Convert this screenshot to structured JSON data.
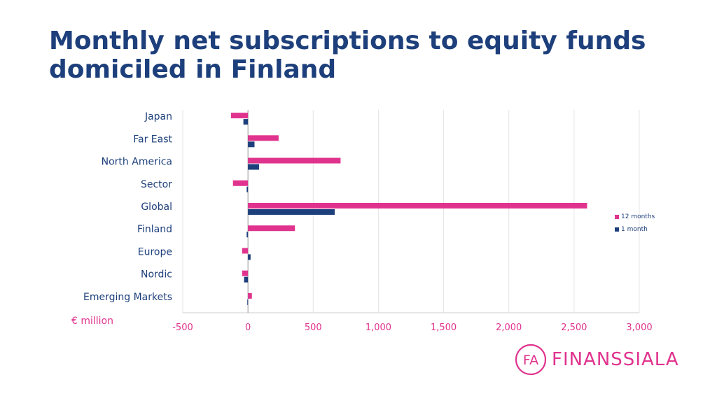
{
  "title": "Monthly net subscriptions to equity funds domiciled in Finland",
  "unit_label": "€ million",
  "logo": {
    "text": "FINANSSIALA",
    "mark_text": "FA"
  },
  "colors": {
    "title": "#1d3f7b",
    "series_12m": "#e0338e",
    "series_1m": "#1d3f7b",
    "axis_text": "#e0338e",
    "category_text": "#1d3f7b"
  },
  "legend": [
    {
      "label": "12 months",
      "color": "#e0338e"
    },
    {
      "label": "1 month",
      "color": "#1d3f7b"
    }
  ],
  "chart_data": {
    "type": "bar",
    "orientation": "horizontal",
    "categories": [
      "Japan",
      "Far East",
      "North America",
      "Sector",
      "Global",
      "Finland",
      "Europe",
      "Nordic",
      "Emerging Markets"
    ],
    "series": [
      {
        "name": "12 months",
        "values": [
          -130,
          235,
          710,
          -115,
          2600,
          360,
          -45,
          -45,
          30
        ]
      },
      {
        "name": "1 month",
        "values": [
          -35,
          50,
          85,
          -10,
          665,
          -10,
          20,
          -30,
          -5
        ]
      }
    ],
    "xlim": [
      -500,
      3000
    ],
    "xticks": [
      -500,
      0,
      500,
      1000,
      1500,
      2000,
      2500,
      3000
    ],
    "xtick_labels": [
      "-500",
      "0",
      "500",
      "1,000",
      "1,500",
      "2,000",
      "2,500",
      "3,000"
    ],
    "grid": true,
    "legend_position": "right"
  }
}
